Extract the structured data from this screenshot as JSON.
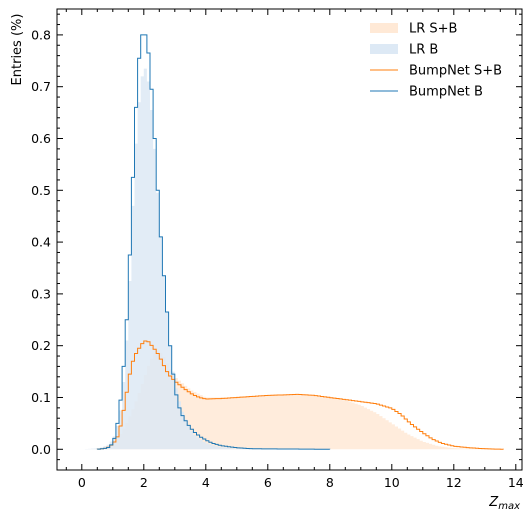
{
  "chart_data": {
    "type": "histogram",
    "xlabel_main": "Z",
    "xlabel_sub": "max",
    "ylabel": "Entries (%)",
    "xlim": [
      -0.8,
      14.2
    ],
    "ylim": [
      -0.04,
      0.85
    ],
    "xticks": [
      0,
      2,
      4,
      6,
      8,
      10,
      12,
      14
    ],
    "yticks": [
      0.0,
      0.1,
      0.2,
      0.3,
      0.4,
      0.5,
      0.6,
      0.7,
      0.8
    ],
    "bin_width": 0.1,
    "minor_ticks": true,
    "legend_position": "top-right",
    "colors": {
      "bumpnet_sb": "#ff7f0e",
      "bumpnet_b": "#1f77b4",
      "lr_sb_fill": "#ffe9d6",
      "lr_b_fill": "#dde9f5"
    },
    "series": [
      {
        "name": "LR S+B",
        "style": "filled",
        "color": "#ffe9d6",
        "x_range": [
          0.0,
          13.6
        ],
        "points": [
          [
            0.0,
            0.0
          ],
          [
            0.5,
            0.0
          ],
          [
            0.8,
            0.005
          ],
          [
            1.0,
            0.012
          ],
          [
            1.2,
            0.025
          ],
          [
            1.4,
            0.045
          ],
          [
            1.6,
            0.07
          ],
          [
            1.8,
            0.1
          ],
          [
            2.0,
            0.135
          ],
          [
            2.2,
            0.17
          ],
          [
            2.4,
            0.19
          ],
          [
            2.6,
            0.185
          ],
          [
            2.8,
            0.16
          ],
          [
            3.0,
            0.14
          ],
          [
            3.2,
            0.13
          ],
          [
            3.5,
            0.115
          ],
          [
            4.0,
            0.1
          ],
          [
            5.0,
            0.1
          ],
          [
            6.0,
            0.103
          ],
          [
            7.0,
            0.105
          ],
          [
            8.0,
            0.1
          ],
          [
            8.6,
            0.093
          ],
          [
            9.0,
            0.085
          ],
          [
            9.5,
            0.07
          ],
          [
            10.0,
            0.05
          ],
          [
            10.5,
            0.03
          ],
          [
            11.0,
            0.015
          ],
          [
            11.5,
            0.006
          ],
          [
            12.0,
            0.002
          ],
          [
            13.6,
            0.0
          ]
        ]
      },
      {
        "name": "LR B",
        "style": "filled",
        "color": "#dde9f5",
        "x_range": [
          0.0,
          8.0
        ],
        "points": [
          [
            0.0,
            0.0
          ],
          [
            0.6,
            0.002
          ],
          [
            0.9,
            0.01
          ],
          [
            1.1,
            0.03
          ],
          [
            1.3,
            0.09
          ],
          [
            1.5,
            0.25
          ],
          [
            1.6,
            0.4
          ],
          [
            1.7,
            0.54
          ],
          [
            1.8,
            0.64
          ],
          [
            1.9,
            0.7
          ],
          [
            2.0,
            0.74
          ],
          [
            2.1,
            0.73
          ],
          [
            2.2,
            0.69
          ],
          [
            2.3,
            0.62
          ],
          [
            2.4,
            0.54
          ],
          [
            2.5,
            0.45
          ],
          [
            2.6,
            0.37
          ],
          [
            2.7,
            0.3
          ],
          [
            2.8,
            0.23
          ],
          [
            2.9,
            0.17
          ],
          [
            3.0,
            0.13
          ],
          [
            3.2,
            0.08
          ],
          [
            3.4,
            0.05
          ],
          [
            3.6,
            0.03
          ],
          [
            3.8,
            0.02
          ],
          [
            4.0,
            0.012
          ],
          [
            4.4,
            0.005
          ],
          [
            5.0,
            0.001
          ],
          [
            8.0,
            0.0
          ]
        ]
      },
      {
        "name": "BumpNet S+B",
        "style": "step",
        "color": "#ff7f0e",
        "x_range": [
          0.5,
          13.6
        ],
        "points": [
          [
            0.5,
            0.0
          ],
          [
            0.8,
            0.002
          ],
          [
            1.0,
            0.01
          ],
          [
            1.1,
            0.018
          ],
          [
            1.2,
            0.03
          ],
          [
            1.3,
            0.06
          ],
          [
            1.4,
            0.09
          ],
          [
            1.5,
            0.13
          ],
          [
            1.6,
            0.16
          ],
          [
            1.7,
            0.18
          ],
          [
            1.8,
            0.19
          ],
          [
            1.9,
            0.2
          ],
          [
            2.0,
            0.208
          ],
          [
            2.1,
            0.21
          ],
          [
            2.2,
            0.205
          ],
          [
            2.3,
            0.196
          ],
          [
            2.4,
            0.19
          ],
          [
            2.5,
            0.18
          ],
          [
            2.6,
            0.168
          ],
          [
            2.7,
            0.155
          ],
          [
            2.8,
            0.145
          ],
          [
            2.9,
            0.138
          ],
          [
            3.0,
            0.132
          ],
          [
            3.2,
            0.122
          ],
          [
            3.4,
            0.113
          ],
          [
            3.6,
            0.105
          ],
          [
            3.8,
            0.1
          ],
          [
            4.0,
            0.097
          ],
          [
            4.5,
            0.098
          ],
          [
            5.0,
            0.1
          ],
          [
            5.5,
            0.102
          ],
          [
            6.0,
            0.104
          ],
          [
            6.5,
            0.105
          ],
          [
            7.0,
            0.106
          ],
          [
            7.5,
            0.104
          ],
          [
            8.0,
            0.1
          ],
          [
            8.5,
            0.096
          ],
          [
            9.0,
            0.092
          ],
          [
            9.5,
            0.088
          ],
          [
            10.0,
            0.079
          ],
          [
            10.3,
            0.067
          ],
          [
            10.6,
            0.05
          ],
          [
            11.0,
            0.032
          ],
          [
            11.3,
            0.02
          ],
          [
            11.6,
            0.012
          ],
          [
            12.0,
            0.006
          ],
          [
            12.5,
            0.003
          ],
          [
            13.0,
            0.001
          ],
          [
            13.6,
            0.0
          ]
        ]
      },
      {
        "name": "BumpNet B",
        "style": "step",
        "color": "#1f77b4",
        "x_range": [
          0.5,
          8.0
        ],
        "points": [
          [
            0.5,
            0.0
          ],
          [
            0.8,
            0.002
          ],
          [
            0.9,
            0.005
          ],
          [
            1.0,
            0.012
          ],
          [
            1.1,
            0.03
          ],
          [
            1.2,
            0.07
          ],
          [
            1.3,
            0.12
          ],
          [
            1.4,
            0.2
          ],
          [
            1.5,
            0.3
          ],
          [
            1.6,
            0.45
          ],
          [
            1.7,
            0.6
          ],
          [
            1.8,
            0.72
          ],
          [
            1.9,
            0.79
          ],
          [
            2.0,
            0.81
          ],
          [
            2.1,
            0.79
          ],
          [
            2.2,
            0.74
          ],
          [
            2.3,
            0.65
          ],
          [
            2.4,
            0.55
          ],
          [
            2.5,
            0.45
          ],
          [
            2.6,
            0.37
          ],
          [
            2.7,
            0.3
          ],
          [
            2.8,
            0.23
          ],
          [
            2.9,
            0.17
          ],
          [
            3.0,
            0.12
          ],
          [
            3.1,
            0.09
          ],
          [
            3.2,
            0.07
          ],
          [
            3.4,
            0.05
          ],
          [
            3.6,
            0.035
          ],
          [
            3.8,
            0.025
          ],
          [
            4.0,
            0.018
          ],
          [
            4.2,
            0.012
          ],
          [
            4.5,
            0.007
          ],
          [
            5.0,
            0.003
          ],
          [
            5.5,
            0.001
          ],
          [
            8.0,
            0.0
          ]
        ]
      }
    ]
  }
}
